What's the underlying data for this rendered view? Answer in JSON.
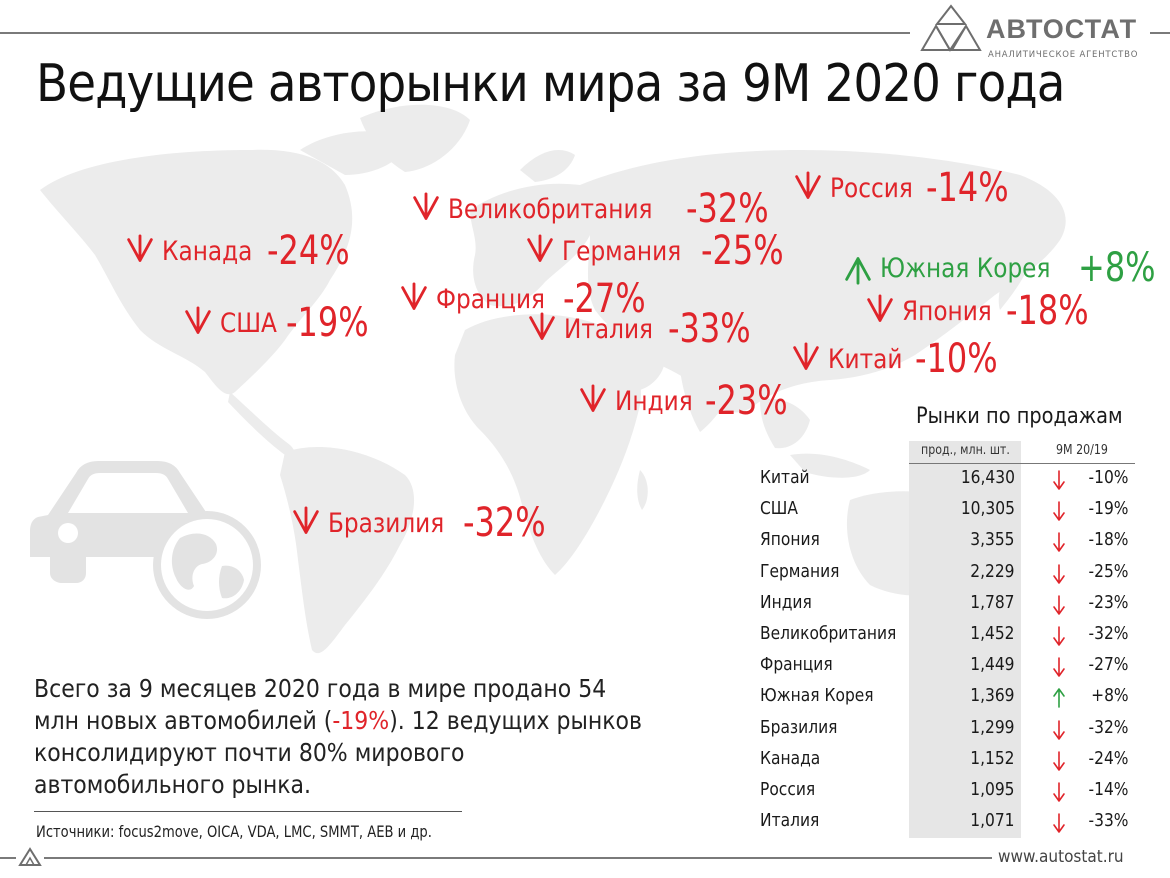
{
  "brand": {
    "logo_text": "АВТОСТАТ",
    "logo_subtitle": "АНАЛИТИЧЕСКОЕ АГЕНТСТВО",
    "website": "www.autostat.ru",
    "colors": {
      "down": "#e0242a",
      "up": "#2ea043",
      "shade": "#e6e6e6",
      "map": "#ececec"
    }
  },
  "title": "Ведущие авторынки мира за 9М 2020 года",
  "map_labels": [
    {
      "name": "Канада",
      "change": "-24%",
      "direction": "down"
    },
    {
      "name": "США",
      "change": "-19%",
      "direction": "down"
    },
    {
      "name": "Великобритания",
      "change": "-32%",
      "direction": "down"
    },
    {
      "name": "Германия",
      "change": "-25%",
      "direction": "down"
    },
    {
      "name": "Франция",
      "change": "-27%",
      "direction": "down"
    },
    {
      "name": "Италия",
      "change": "-33%",
      "direction": "down"
    },
    {
      "name": "Индия",
      "change": "-23%",
      "direction": "down"
    },
    {
      "name": "Бразилия",
      "change": "-32%",
      "direction": "down"
    },
    {
      "name": "Россия",
      "change": "-14%",
      "direction": "down"
    },
    {
      "name": "Южная Корея",
      "change": "+8%",
      "direction": "up"
    },
    {
      "name": "Япония",
      "change": "-18%",
      "direction": "down"
    },
    {
      "name": "Китай",
      "change": "-10%",
      "direction": "down"
    }
  ],
  "summary": {
    "text_before": "Всего за 9 месяцев 2020 года в мире продано 54 млн новых автомобилей (",
    "highlight": "-19%",
    "text_after": "). 12 ведущих рынков консолидируют почти 80% мирового автомобильного рынка."
  },
  "sources": "Источники: focus2move, OICA, VDA, LMC, SMMT, AEB и др.",
  "chart_data": {
    "type": "table",
    "title": "Рынки по продажам",
    "columns": [
      "",
      "прод., млн. шт.",
      "9М 20/19"
    ],
    "rows": [
      {
        "country": "Китай",
        "sales": "16,430",
        "change": "-10%",
        "direction": "down"
      },
      {
        "country": "США",
        "sales": "10,305",
        "change": "-19%",
        "direction": "down"
      },
      {
        "country": "Япония",
        "sales": "3,355",
        "change": "-18%",
        "direction": "down"
      },
      {
        "country": "Германия",
        "sales": "2,229",
        "change": "-25%",
        "direction": "down"
      },
      {
        "country": "Индия",
        "sales": "1,787",
        "change": "-23%",
        "direction": "down"
      },
      {
        "country": "Великобритания",
        "sales": "1,452",
        "change": "-32%",
        "direction": "down"
      },
      {
        "country": "Франция",
        "sales": "1,449",
        "change": "-27%",
        "direction": "down"
      },
      {
        "country": "Южная Корея",
        "sales": "1,369",
        "change": "+8%",
        "direction": "up"
      },
      {
        "country": "Бразилия",
        "sales": "1,299",
        "change": "-32%",
        "direction": "down"
      },
      {
        "country": "Канада",
        "sales": "1,152",
        "change": "-24%",
        "direction": "down"
      },
      {
        "country": "Россия",
        "sales": "1,095",
        "change": "-14%",
        "direction": "down"
      },
      {
        "country": "Италия",
        "sales": "1,071",
        "change": "-33%",
        "direction": "down"
      }
    ]
  }
}
